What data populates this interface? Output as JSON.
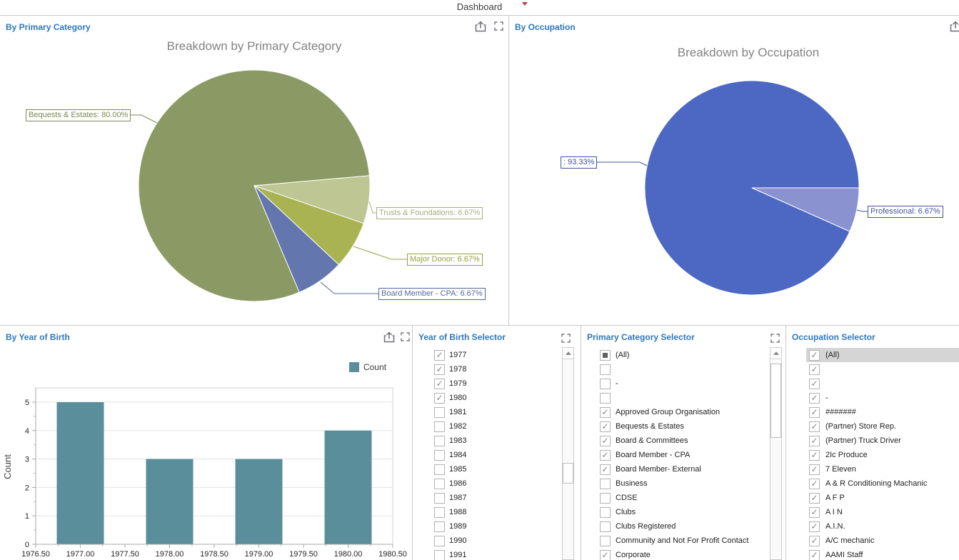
{
  "app": {
    "title": "Dashboard"
  },
  "icons": {
    "panel_actions": [
      "export",
      "maximize"
    ],
    "scroll_up": "▲",
    "caret": "▾",
    "check": "✓"
  },
  "colors": {
    "panel_title": "#2e78bb",
    "chart_title": "#838383",
    "divider": "#c9c9c9",
    "highlight_row": "#d5d5d5",
    "bar": "#5b8e9b"
  },
  "panels": {
    "primary_category": {
      "title": "By Primary Category"
    },
    "occupation": {
      "title": "By Occupation"
    },
    "year_of_birth": {
      "title": "By Year of Birth"
    },
    "year_selector": {
      "title": "Year of Birth Selector",
      "items": [
        {
          "label": "1977",
          "state": "checked"
        },
        {
          "label": "1978",
          "state": "checked"
        },
        {
          "label": "1979",
          "state": "checked"
        },
        {
          "label": "1980",
          "state": "checked"
        },
        {
          "label": "1981",
          "state": "unchecked"
        },
        {
          "label": "1982",
          "state": "unchecked"
        },
        {
          "label": "1983",
          "state": "unchecked"
        },
        {
          "label": "1984",
          "state": "unchecked"
        },
        {
          "label": "1985",
          "state": "unchecked"
        },
        {
          "label": "1986",
          "state": "unchecked"
        },
        {
          "label": "1987",
          "state": "unchecked"
        },
        {
          "label": "1988",
          "state": "unchecked"
        },
        {
          "label": "1989",
          "state": "unchecked"
        },
        {
          "label": "1990",
          "state": "unchecked"
        },
        {
          "label": "1991",
          "state": "unchecked"
        }
      ]
    },
    "category_selector": {
      "title": "Primary Category Selector",
      "items": [
        {
          "label": "(All)",
          "state": "indeterminate"
        },
        {
          "label": "",
          "state": "unchecked"
        },
        {
          "label": "-",
          "state": "unchecked"
        },
        {
          "label": "",
          "state": "unchecked"
        },
        {
          "label": "Approved Group Organisation",
          "state": "checked"
        },
        {
          "label": "Bequests & Estates",
          "state": "checked"
        },
        {
          "label": "Board & Committees",
          "state": "checked"
        },
        {
          "label": "Board Member - CPA",
          "state": "checked"
        },
        {
          "label": "Board Member- External",
          "state": "checked"
        },
        {
          "label": "Business",
          "state": "unchecked"
        },
        {
          "label": "CDSE",
          "state": "unchecked"
        },
        {
          "label": "Clubs",
          "state": "unchecked"
        },
        {
          "label": "Clubs Registered",
          "state": "unchecked"
        },
        {
          "label": "Community and Not For Profit Contact",
          "state": "unchecked"
        },
        {
          "label": "Corporate",
          "state": "checked"
        }
      ]
    },
    "occupation_selector": {
      "title": "Occupation Selector",
      "items": [
        {
          "label": "(All)",
          "state": "checked",
          "highlighted": true
        },
        {
          "label": "",
          "state": "checked"
        },
        {
          "label": "",
          "state": "checked"
        },
        {
          "label": "-",
          "state": "checked"
        },
        {
          "label": "#######",
          "state": "checked"
        },
        {
          "label": "(Partner) Store Rep.",
          "state": "checked"
        },
        {
          "label": "(Partner) Truck Driver",
          "state": "checked"
        },
        {
          "label": "2Ic Produce",
          "state": "checked"
        },
        {
          "label": "7 Eleven",
          "state": "checked"
        },
        {
          "label": "A & R Conditioning Machanic",
          "state": "checked"
        },
        {
          "label": "A F P",
          "state": "checked"
        },
        {
          "label": "A I N",
          "state": "checked"
        },
        {
          "label": "A.I.N.",
          "state": "checked"
        },
        {
          "label": "A/C mechanic",
          "state": "checked"
        },
        {
          "label": "AAMI Staff",
          "state": "checked"
        }
      ]
    }
  },
  "chart_data": [
    {
      "type": "pie",
      "title": "Breakdown by Primary Category",
      "start_deg": 67,
      "slices": [
        {
          "label": "Bequests & Estates",
          "value": 80.0,
          "color": "#8b9a64",
          "label_color": "#7d8a55",
          "callout": "Bequests & Estates: 80.00%"
        },
        {
          "label": "Trusts & Foundations",
          "value": 6.67,
          "color": "#bec693",
          "label_color": "#a6ad7c",
          "callout": "Trusts & Foundations: 6.67%"
        },
        {
          "label": "Major Donor",
          "value": 6.67,
          "color": "#a9b352",
          "label_color": "#95a13e",
          "callout": "Major Donor: 6.67%"
        },
        {
          "label": "Board Member - CPA",
          "value": 6.67,
          "color": "#6377ae",
          "label_color": "#55689e",
          "callout": "Board Member - CPA: 6.67%"
        }
      ]
    },
    {
      "type": "pie",
      "title": "Breakdown by Occupation",
      "start_deg": 24,
      "slices": [
        {
          "label": "",
          "value": 93.33,
          "color": "#4c68c2",
          "label_color": "#45549c",
          "callout": ": 93.33%"
        },
        {
          "label": "Professional",
          "value": 6.67,
          "color": "#8a92d0",
          "label_color": "#45549c",
          "callout": "Professional: 6.67%"
        }
      ]
    },
    {
      "type": "bar",
      "title": "",
      "xlabel": "",
      "ylabel": "Count",
      "xlim": [
        1976.5,
        1980.5
      ],
      "ylim": [
        0,
        5
      ],
      "grid": "horizontal",
      "legend_position": "top-right",
      "xticks": [
        "1976.50",
        "1977.00",
        "1977.50",
        "1978.00",
        "1978.50",
        "1979.00",
        "1979.50",
        "1980.00",
        "1980.50"
      ],
      "yticks": [
        0,
        1,
        2,
        3,
        4,
        5
      ],
      "series": [
        {
          "name": "Count",
          "color": "#5b8e9b",
          "x": [
            1977,
            1978,
            1979,
            1980
          ],
          "values": [
            5,
            3,
            3,
            4
          ]
        }
      ]
    }
  ]
}
